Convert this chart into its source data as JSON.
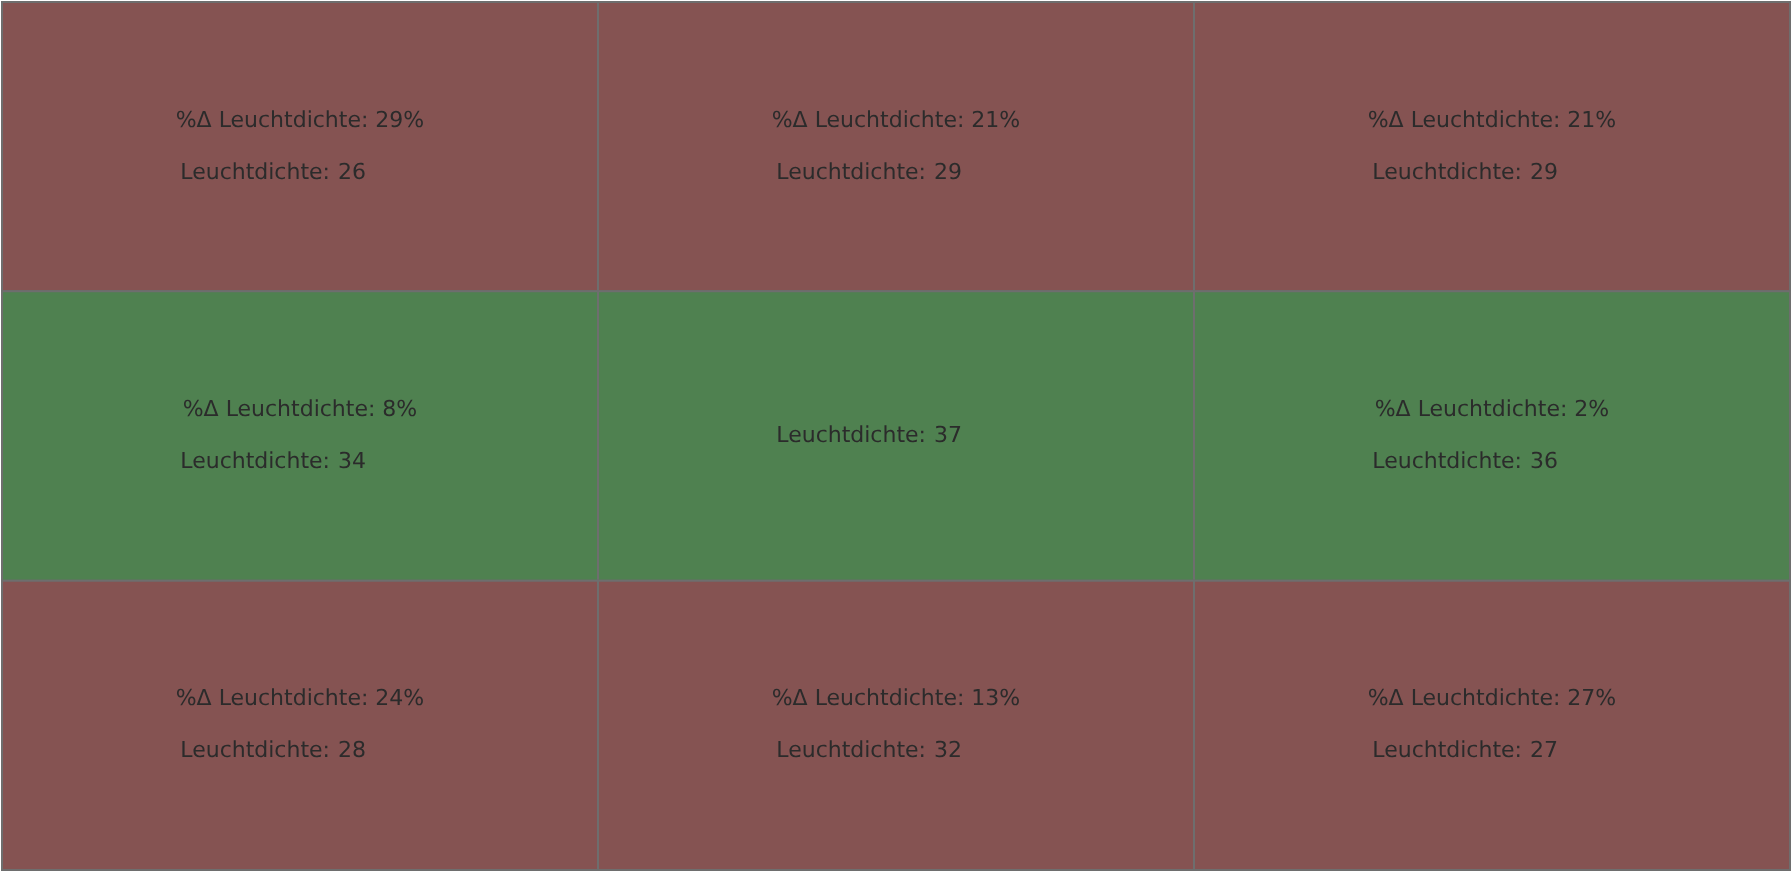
{
  "chart_data": {
    "type": "heatmap",
    "categories": [
      null,
      null,
      null
    ],
    "y_categories": [
      null,
      null,
      null
    ],
    "clabel": "Leuchtdichte:",
    "data_labels": true,
    "cells": [
      [
        26,
        29,
        29
      ],
      [
        34,
        37,
        36
      ],
      [
        28,
        32,
        27
      ]
    ],
    "annotations": [
      "%Δ Leuchtdichte:  29%",
      "%Δ Leuchtdichte:  21%",
      "%Δ Leuchtdichte:  21%",
      "%Δ Leuchtdichte:  8%",
      null,
      "%Δ Leuchtdichte:  2%",
      "%Δ Leuchtdichte:  24%",
      "%Δ Leuchtdichte:  13%",
      "%Δ Leuchtdichte:  27%"
    ],
    "colors": [
      [
        "#855352",
        "#855352",
        "#855352"
      ],
      [
        "#4f8150",
        "#4f8150",
        "#4f8150"
      ],
      [
        "#855352",
        "#855352",
        "#855352"
      ]
    ]
  }
}
